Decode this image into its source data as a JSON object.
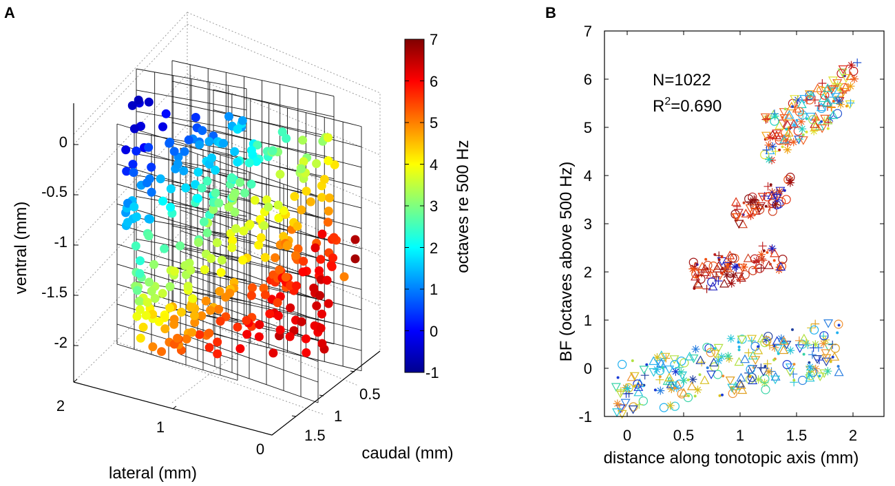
{
  "figure": {
    "panel_a_label": "A",
    "panel_b_label": "B"
  },
  "chart_data": [
    {
      "panel": "A",
      "type": "scatter3d",
      "title": "",
      "xlabel": "lateral (mm)",
      "ylabel": "caudal (mm)",
      "zlabel": "ventral (mm)",
      "lateral_ticks": [
        "2",
        "1",
        "0"
      ],
      "caudal_ticks": [
        "0.5",
        "1",
        "1.5"
      ],
      "ventral_ticks": [
        "0",
        "-0.5",
        "-1",
        "-1.5",
        "-2"
      ],
      "ventral_lim": [
        -2.3,
        0.45
      ],
      "colorbar": {
        "label": "octaves re 500 Hz",
        "ticks": [
          "7",
          "6",
          "5",
          "4",
          "3",
          "2",
          "1",
          "0",
          "-1"
        ],
        "range": [
          -1,
          7
        ]
      },
      "point_summary": "electrode recording sites colored by best frequency (octaves re 500 Hz): low BF (blue, -1 to 1) dorsal/rostral, high BF (red, 5 to 7) ventral/caudal, with black recording-grid planes"
    },
    {
      "panel": "B",
      "type": "scatter",
      "title": "",
      "xlabel": "distance along tonotopic axis (mm)",
      "ylabel": "BF (octaves above 500 Hz)",
      "xlim": [
        -0.4,
        2.3
      ],
      "ylim": [
        -1,
        7
      ],
      "xticks": [
        "0",
        "0.5",
        "1",
        "1.5",
        "2"
      ],
      "yticks": [
        "-1",
        "0",
        "1",
        "2",
        "3",
        "4",
        "5",
        "6",
        "7"
      ],
      "annotations": {
        "n": "N=1022",
        "r2_prefix": "R",
        "r2_sup": "2",
        "r2_value": "=0.690"
      },
      "clusters": [
        {
          "name": "low BF band",
          "x_range": [
            -0.1,
            1.9
          ],
          "y_range": [
            -1,
            1.0
          ]
        },
        {
          "name": "mid BF band",
          "x_range": [
            0.55,
            1.4
          ],
          "y_range": [
            1.6,
            2.6
          ]
        },
        {
          "name": "upper-mid BF band",
          "x_range": [
            0.95,
            1.45
          ],
          "y_range": [
            2.9,
            4.0
          ]
        },
        {
          "name": "high BF band",
          "x_range": [
            1.2,
            2.05
          ],
          "y_range": [
            4.2,
            6.4
          ]
        }
      ],
      "marker_types": [
        "circle",
        "triangle",
        "triangle-down",
        "plus",
        "asterisk",
        "dot"
      ]
    }
  ]
}
